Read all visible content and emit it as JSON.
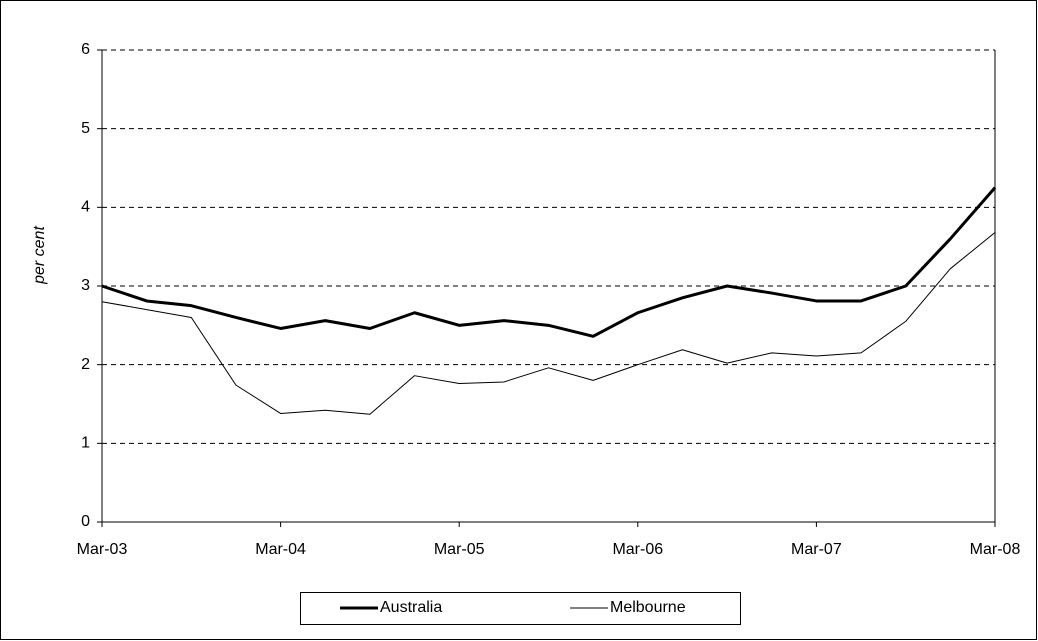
{
  "chart_data": {
    "type": "line",
    "y_label": "per cent",
    "categories": [
      "Mar-03",
      null,
      null,
      null,
      "Mar-04",
      null,
      null,
      null,
      "Mar-05",
      null,
      null,
      null,
      "Mar-06",
      null,
      null,
      null,
      "Mar-07",
      null,
      null,
      null,
      "Mar-08"
    ],
    "series": [
      {
        "name": "Australia",
        "color": "#000000",
        "line_width": 3,
        "values": [
          3.0,
          2.81,
          2.75,
          2.6,
          2.46,
          2.56,
          2.46,
          2.66,
          2.5,
          2.56,
          2.5,
          2.36,
          2.66,
          2.85,
          3.0,
          2.91,
          2.81,
          2.81,
          3.0,
          3.6,
          4.25
        ]
      },
      {
        "name": "Melbourne",
        "color": "#000000",
        "line_width": 1,
        "values": [
          2.8,
          2.7,
          2.6,
          1.74,
          1.38,
          1.42,
          1.37,
          1.86,
          1.76,
          1.78,
          1.96,
          1.8,
          2.0,
          2.19,
          2.02,
          2.15,
          2.11,
          2.15,
          2.55,
          3.22,
          3.68
        ]
      }
    ],
    "ylim": [
      0,
      6
    ],
    "yticks": [
      0,
      1,
      2,
      3,
      4,
      5,
      6
    ],
    "grid": true,
    "legend": "bottom"
  }
}
